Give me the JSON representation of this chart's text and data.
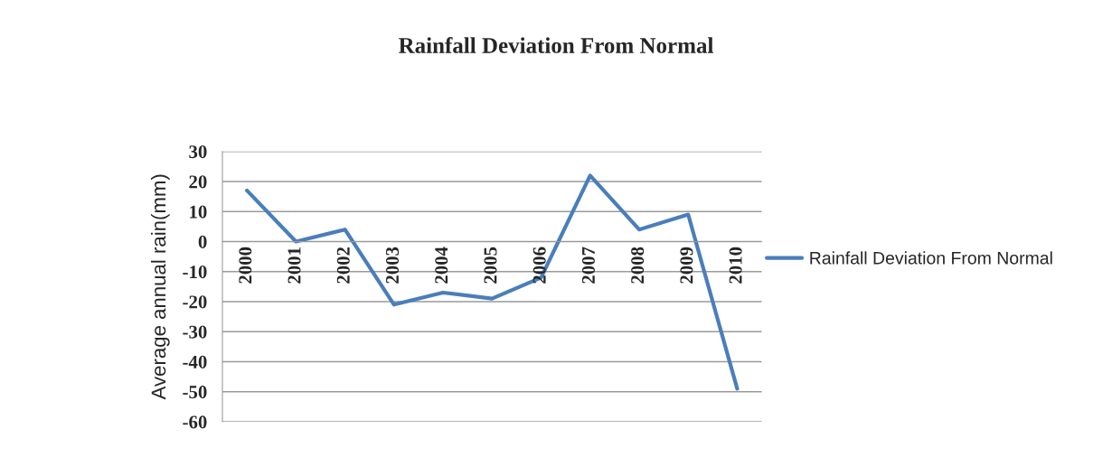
{
  "chart_data": {
    "type": "line",
    "title": "Rainfall Deviation From Normal",
    "ylabel": "Average annual rain(mm)",
    "categories": [
      "2000",
      "2001",
      "2002",
      "2003",
      "2004",
      "2005",
      "2006",
      "2007",
      "2008",
      "2009",
      "2010"
    ],
    "series": [
      {
        "name": "Rainfall Deviation From Normal",
        "color": "#4a7ebb",
        "values": [
          17,
          0,
          4,
          -21,
          -17,
          -19,
          -12,
          22,
          4,
          9,
          -49
        ]
      }
    ],
    "ylim": [
      -60,
      30
    ],
    "yticks": [
      -60,
      -50,
      -40,
      -30,
      -20,
      -10,
      0,
      10,
      20,
      30
    ],
    "grid": "y",
    "legend": "right",
    "marker": "none",
    "line_style": "solid"
  }
}
